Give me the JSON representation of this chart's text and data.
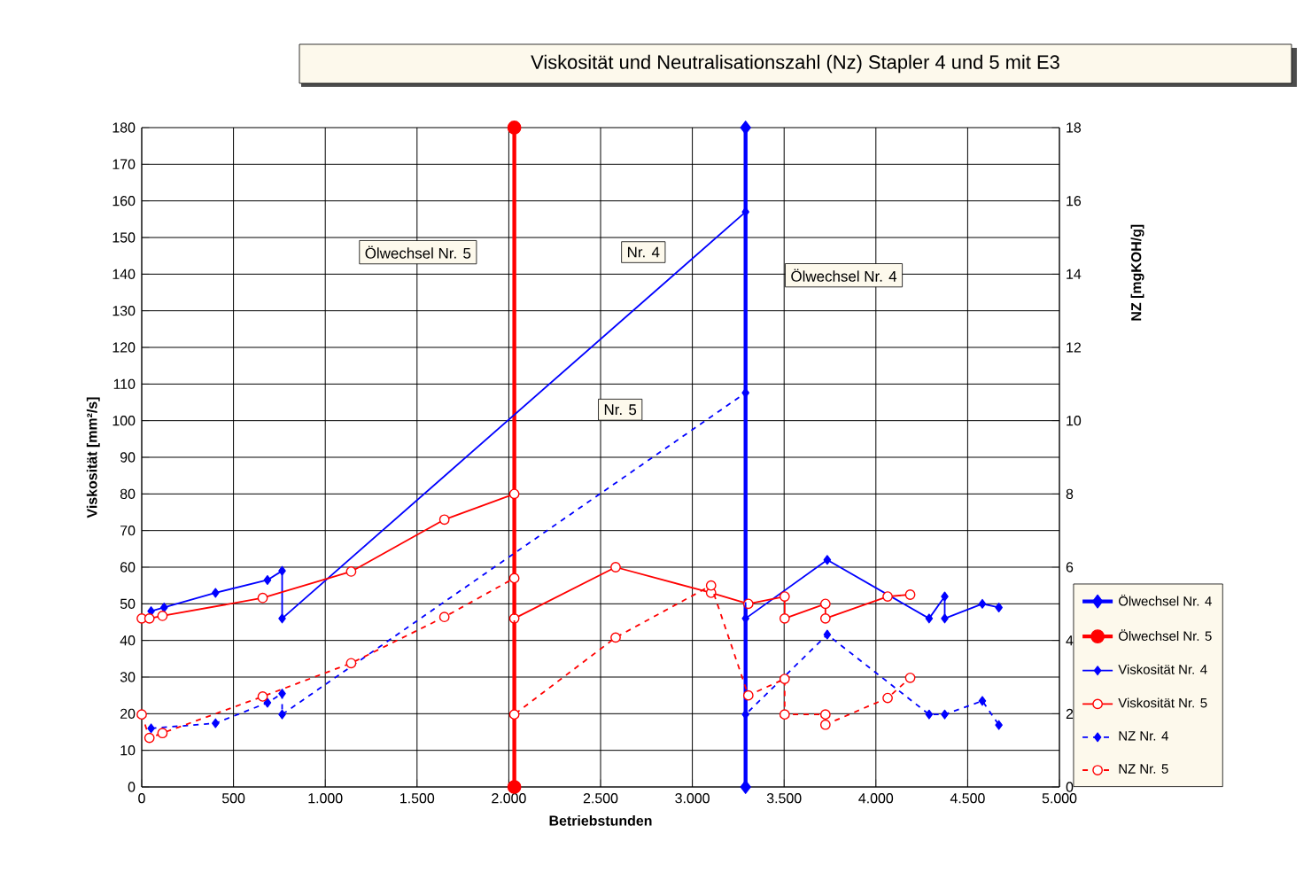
{
  "chart_data": {
    "type": "line",
    "title": "Viskosität und Neutralisationszahl (Nz) Stapler 4 und 5 mit E3",
    "xlabel": "Betriebstunden",
    "ylabel": "Viskosität [mm²/s]",
    "y2label": "NZ [mgKOH/g]",
    "series": [
      {
        "name": "Ölwechsel Nr. 4",
        "color": "#0000ff",
        "marker": "diamond",
        "line_style": "solid",
        "x": [
          3290,
          3290
        ],
        "values": [
          0,
          180
        ]
      },
      {
        "name": "Ölwechsel Nr. 5",
        "color": "#ff0000",
        "marker": "circle",
        "line_style": "solid",
        "x": [
          2030,
          2030
        ],
        "values": [
          0,
          180
        ]
      },
      {
        "name": "Viskosität Nr. 4",
        "color": "#0000ff",
        "marker": "diamond",
        "line_style": "solid",
        "x": [
          51,
          122,
          402,
          685,
          765,
          765,
          3290,
          3290,
          3735,
          4290,
          4375,
          4375,
          4580,
          4670
        ],
        "values": [
          48,
          49,
          53,
          56.5,
          59,
          46,
          157,
          46,
          62,
          46,
          52,
          46,
          50,
          49
        ]
      },
      {
        "name": "Viskosität Nr. 5",
        "color": "#ff0000",
        "marker": "circle",
        "line_style": "solid",
        "x": [
          0,
          42,
          113,
          659,
          1141,
          1649,
          2030,
          2030,
          2582,
          3102,
          3305,
          3503,
          3503,
          3725,
          3725,
          4064,
          4187
        ],
        "values": [
          46,
          46,
          46.7,
          51.6,
          58.8,
          73,
          80,
          46,
          60,
          53,
          50,
          52,
          46,
          50,
          46,
          52,
          52.5
        ]
      },
      {
        "name": "NZ Nr. 4",
        "color": "#0000ff",
        "marker": "diamond",
        "line_style": "dashed",
        "axis": "y2",
        "x": [
          51,
          402,
          685,
          765,
          765,
          3290,
          3290,
          3735,
          4290,
          4375,
          4580,
          4670
        ],
        "values": [
          1.6,
          1.74,
          2.3,
          2.55,
          1.98,
          10.76,
          1.98,
          4.16,
          1.98,
          1.98,
          2.35,
          1.69
        ]
      },
      {
        "name": "NZ Nr. 5",
        "color": "#ff0000",
        "marker": "circle",
        "line_style": "dashed",
        "axis": "y2",
        "x": [
          0,
          42,
          113,
          659,
          1141,
          1649,
          2030,
          2030,
          2582,
          3102,
          3305,
          3503,
          3503,
          3725,
          3725,
          4064,
          4187
        ],
        "values": [
          1.98,
          1.34,
          1.47,
          2.47,
          3.38,
          4.64,
          5.7,
          1.98,
          4.08,
          5.5,
          2.5,
          2.95,
          1.98,
          1.98,
          1.7,
          2.43,
          2.98
        ]
      }
    ],
    "xlim": [
      0,
      5000
    ],
    "xticks": [
      0,
      500,
      {
        "value": 1000,
        "label": "1.000"
      },
      {
        "value": 1500,
        "label": "1.500"
      },
      {
        "value": 2000,
        "label": "2.000"
      },
      {
        "value": 2500,
        "label": "2.500"
      },
      {
        "value": 3000,
        "label": "3.000"
      },
      {
        "value": 3500,
        "label": "3.500"
      },
      {
        "value": 4000,
        "label": "4.000"
      },
      {
        "value": 4500,
        "label": "4.500"
      },
      {
        "value": 5000,
        "label": "5.000"
      }
    ],
    "ylim": [
      0,
      180
    ],
    "yticks": [
      0,
      10,
      20,
      30,
      40,
      50,
      60,
      70,
      80,
      90,
      100,
      110,
      120,
      130,
      140,
      150,
      160,
      170,
      180
    ],
    "y2lim": [
      0,
      18
    ],
    "y2ticks": [
      0,
      2,
      4,
      6,
      8,
      10,
      12,
      14,
      16,
      18
    ],
    "annotations": [
      "Ölwechsel Nr. 5",
      {
        "text": "Nr. 4",
        "x": 2733,
        "y": 146
      },
      {
        "text": "Nr. 5",
        "x": 2607,
        "y": 103
      },
      "Ölwechsel Nr. 4"
    ],
    "grid": true,
    "legend": "right"
  }
}
